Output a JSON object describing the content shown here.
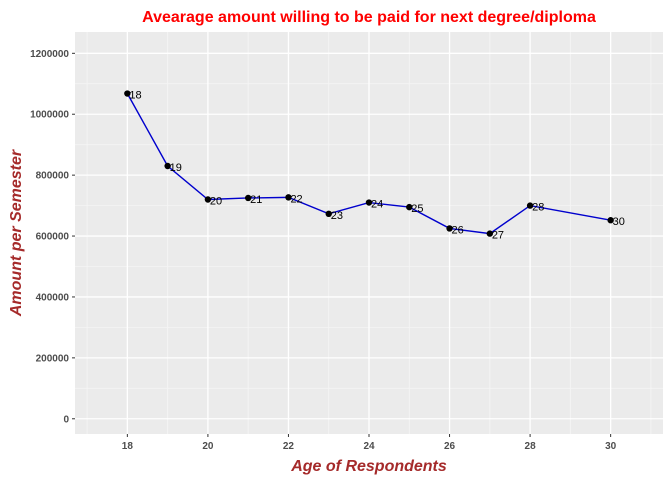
{
  "chart_data": {
    "type": "line",
    "title": "Avearage amount willing to be paid for next degree/diploma",
    "xlabel": "Age of Respondents",
    "ylabel": "Amount per Semester",
    "xlim": [
      16.7,
      31.3
    ],
    "ylim": [
      -50000,
      1270000
    ],
    "x_ticks": [
      18,
      20,
      22,
      24,
      26,
      28,
      30
    ],
    "y_ticks": [
      0,
      200000,
      400000,
      600000,
      800000,
      1000000,
      1200000
    ],
    "grid": true,
    "legend": "none",
    "series": [
      {
        "x": [
          18,
          19,
          20,
          21,
          22,
          23,
          24,
          25,
          26,
          27,
          28,
          30
        ],
        "y": [
          1068000,
          830000,
          720000,
          725000,
          727000,
          673000,
          710000,
          695000,
          625000,
          608000,
          700000,
          652000
        ],
        "labels": [
          "18",
          "19",
          "20",
          "21",
          "22",
          "23",
          "24",
          "25",
          "26",
          "27",
          "28",
          "30"
        ]
      }
    ],
    "colors": {
      "title": "#ff0000",
      "axis_title": "#a52a2a",
      "line": "#0000cd",
      "point": "#000000",
      "panel": "#ebebeb",
      "grid_major": "#ffffff",
      "grid_minor": "#f5f5f5",
      "tick_label": "#4d4d4d"
    }
  }
}
